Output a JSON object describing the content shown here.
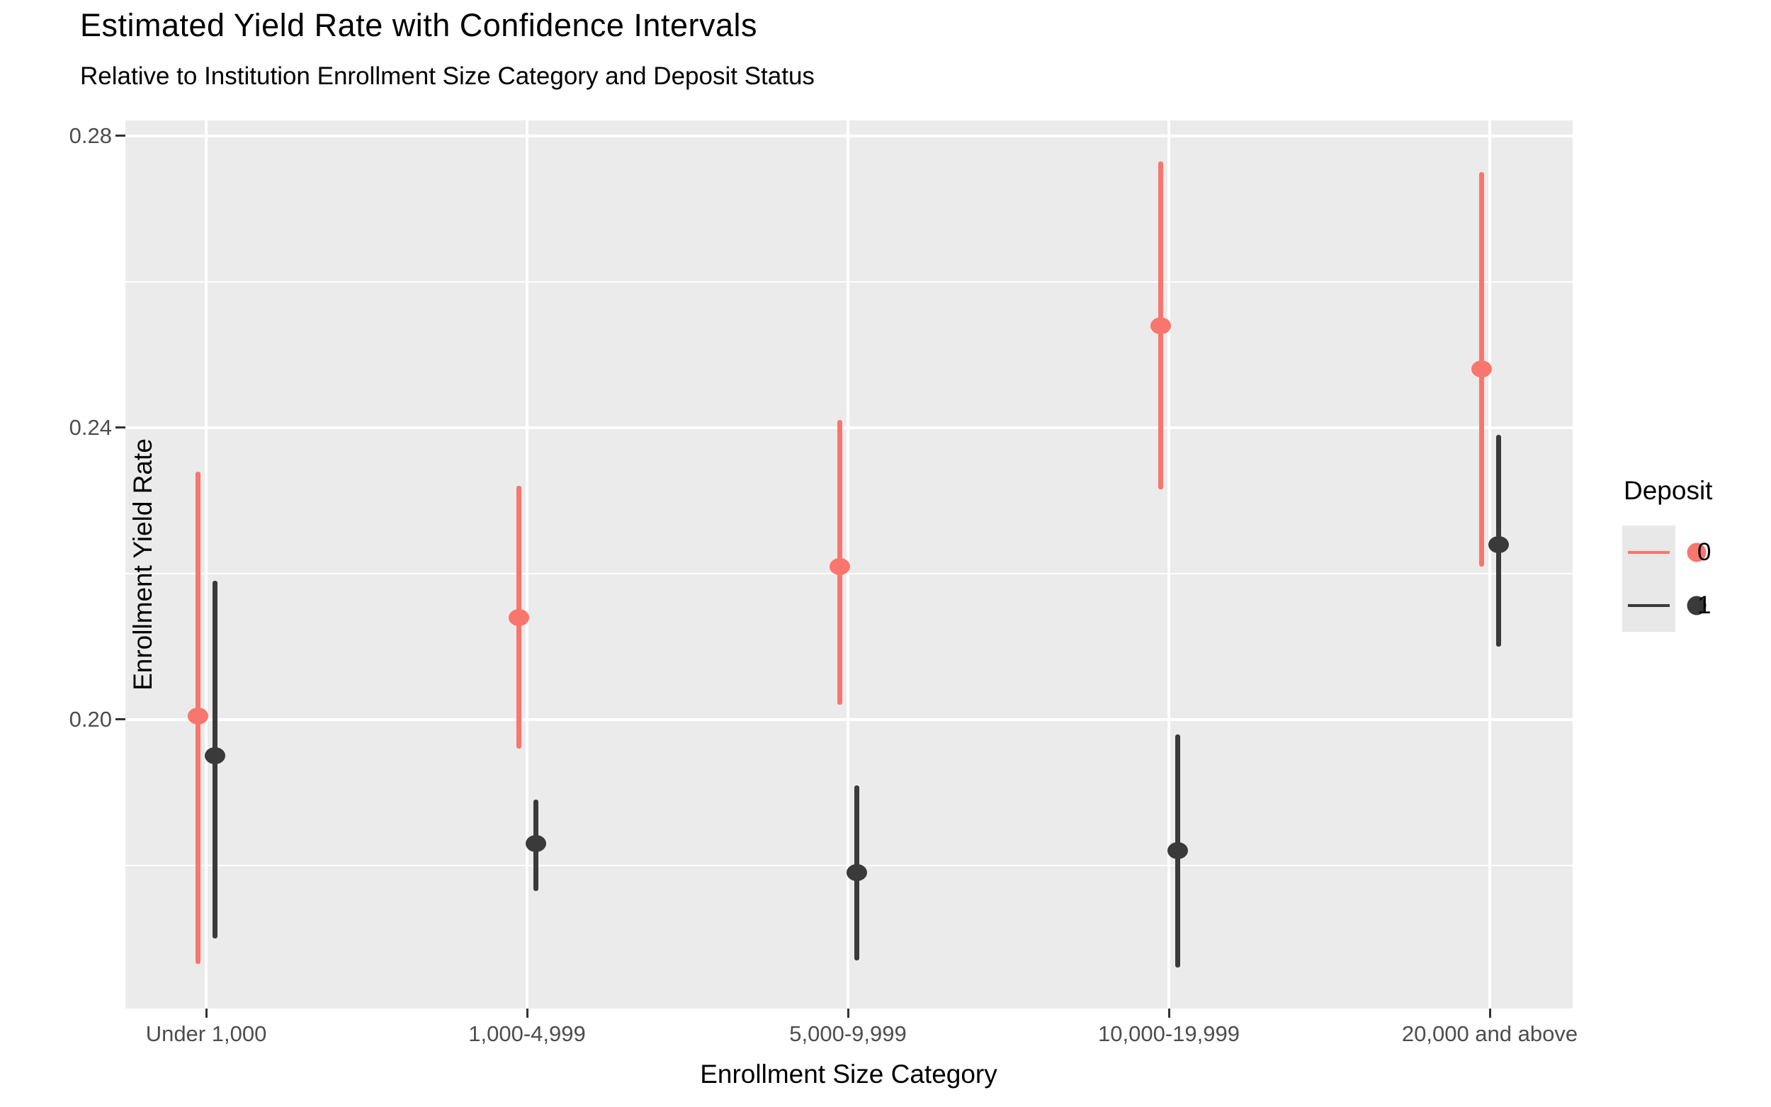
{
  "title": "Estimated Yield Rate with Confidence Intervals",
  "subtitle": "Relative to Institution Enrollment Size Category and Deposit Status",
  "chart_data": {
    "type": "scatter",
    "subtype": "pointrange-dot-with-confidence-interval",
    "title": "Estimated Yield Rate with Confidence Intervals",
    "subtitle": "Relative to Institution Enrollment Size Category and Deposit Status",
    "xlabel": "Enrollment Size Category",
    "ylabel": "Enrollment Yield Rate",
    "categories": [
      "Under 1,000",
      "1,000-4,999",
      "5,000-9,999",
      "10,000-19,999",
      "20,000 and above"
    ],
    "series": [
      {
        "name": "0",
        "color": "#F8766D",
        "estimates": [
          0.2005,
          0.214,
          0.221,
          0.254,
          0.248
        ],
        "lower": [
          0.1665,
          0.196,
          0.202,
          0.2315,
          0.221
        ],
        "upper": [
          0.234,
          0.232,
          0.241,
          0.2765,
          0.275
        ]
      },
      {
        "name": "1",
        "color": "#3A3A3A",
        "estimates": [
          0.195,
          0.183,
          0.179,
          0.182,
          0.224
        ],
        "lower": [
          0.17,
          0.1765,
          0.167,
          0.166,
          0.21
        ],
        "upper": [
          0.219,
          0.189,
          0.191,
          0.198,
          0.239
        ]
      }
    ],
    "ylim": [
      0.1604,
      0.2821
    ],
    "y_major_ticks": [
      "0.20",
      "0.24",
      "0.28"
    ],
    "y_major_values": [
      0.2,
      0.24,
      0.28
    ],
    "y_minor_values": [
      0.18,
      0.22,
      0.26
    ],
    "grid": "white major and minor gridlines on gray panel",
    "legend_position": "right"
  },
  "legend": {
    "title": "Deposit",
    "entries": [
      {
        "label": "0",
        "color": "#F8766D"
      },
      {
        "label": "1",
        "color": "#3A3A3A"
      }
    ]
  },
  "colors": {
    "panel_background": "#EBEBEB",
    "gridline": "#FFFFFF",
    "deposit_0": "#F8766D",
    "deposit_1": "#3A3A3A",
    "tick_label": "#4D4D4D",
    "text": "#000000",
    "legend_key_background": "#E8E8E8"
  }
}
